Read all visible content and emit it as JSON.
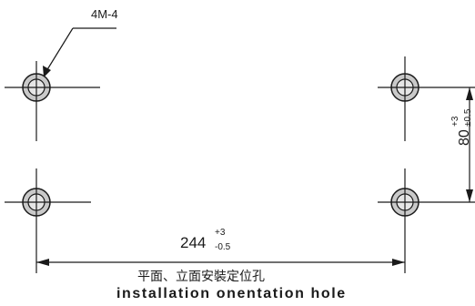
{
  "callout": {
    "label": "4M-4"
  },
  "dimensions": {
    "horizontal": {
      "nominal": "244",
      "tol_upper": "+3",
      "tol_lower": "-0.5"
    },
    "vertical": {
      "nominal": "80",
      "tol_upper": "+3",
      "tol_lower": "±0.5"
    }
  },
  "caption": {
    "chinese": "平面、立面安裝定位孔",
    "english": "installation onentation hole"
  },
  "colors": {
    "line": "#1a1a1a",
    "hole_fill": "#c9c9c9",
    "hole_inner": "#e6e6e6"
  },
  "holes": [
    {
      "id": "top-left"
    },
    {
      "id": "top-right"
    },
    {
      "id": "bottom-left"
    },
    {
      "id": "bottom-right"
    }
  ]
}
